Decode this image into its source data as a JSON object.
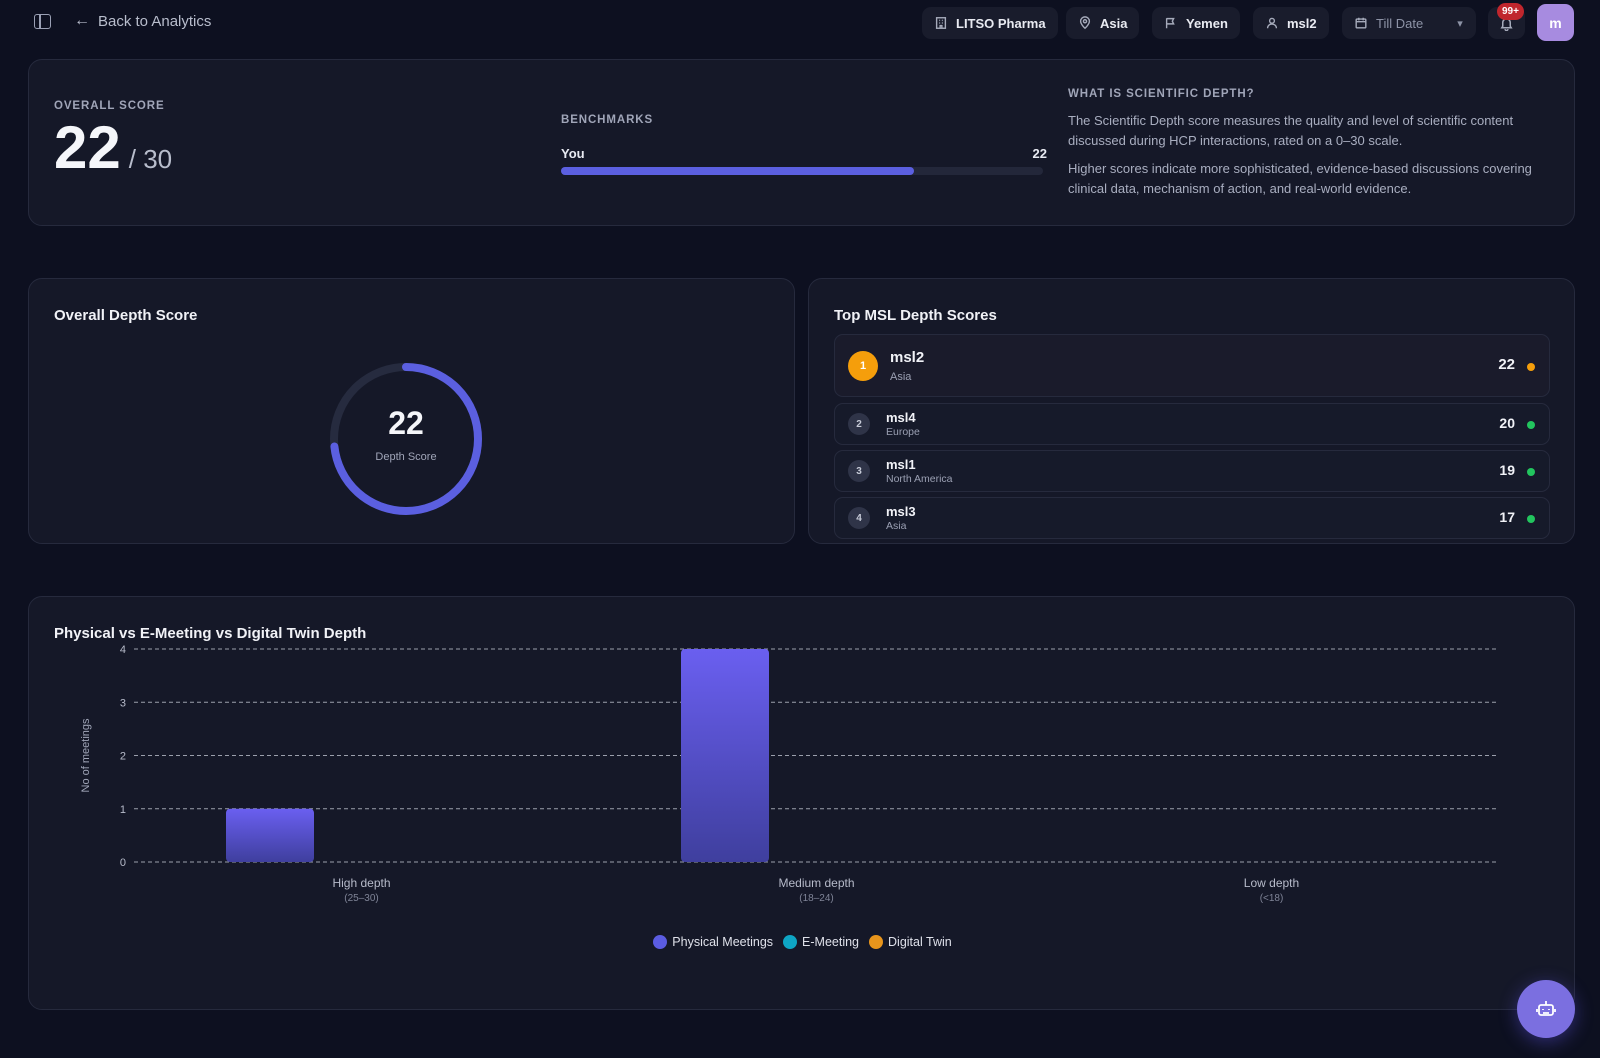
{
  "topbar": {
    "back_label": "Back to Analytics",
    "company": "LITSO Pharma",
    "region": "Asia",
    "country": "Yemen",
    "user": "msl2",
    "date_filter": "Till Date",
    "notifications_badge": "99+",
    "avatar_initial": "m"
  },
  "overview": {
    "overall_label": "OVERALL SCORE",
    "score": "22",
    "score_max": "/ 30",
    "benchmarks_label": "BENCHMARKS",
    "bench_you_label": "You",
    "bench_you_value": "22",
    "bench_fraction": 0.733,
    "what_title": "WHAT IS SCIENTIFIC DEPTH?",
    "what_p1": "The Scientific Depth score measures the quality and level of scientific content discussed during HCP interactions, rated on a 0–30 scale.",
    "what_p2": "Higher scores indicate more sophisticated, evidence-based discussions covering clinical data, mechanism of action, and real-world evidence."
  },
  "depth_card": {
    "title": "Overall Depth Score",
    "score": "22",
    "sub": "Depth Score",
    "gauge_fraction": 0.733
  },
  "top_msl": {
    "title": "Top MSL Depth Scores",
    "rows": [
      {
        "rank": "1",
        "name": "msl2",
        "region": "Asia",
        "score": "22",
        "dot_color": "#f59e0b"
      },
      {
        "rank": "2",
        "name": "msl4",
        "region": "Europe",
        "score": "20",
        "dot_color": "#22c55e"
      },
      {
        "rank": "3",
        "name": "msl1",
        "region": "North America",
        "score": "19",
        "dot_color": "#22c55e"
      },
      {
        "rank": "4",
        "name": "msl3",
        "region": "Asia",
        "score": "17",
        "dot_color": "#22c55e"
      }
    ]
  },
  "chart_data": {
    "type": "bar",
    "title": "Physical vs E-Meeting vs Digital Twin Depth",
    "ylabel": "No of meetings",
    "xlabel": "",
    "ylim": [
      0,
      4
    ],
    "yticks": [
      "0",
      "1",
      "2",
      "3",
      "4"
    ],
    "grid": true,
    "legend_position": "bottom",
    "categories": [
      "High depth",
      "Medium depth",
      "Low depth"
    ],
    "category_ranges": [
      "(25–30)",
      "(18–24)",
      "(<18)"
    ],
    "series": [
      {
        "name": "Physical Meetings",
        "color": "#5b5ce2",
        "values": [
          1,
          4,
          0
        ]
      },
      {
        "name": "E-Meeting",
        "color": "#0ea5c4",
        "values": [
          0,
          0,
          0
        ]
      },
      {
        "name": "Digital Twin",
        "color": "#e8951c",
        "values": [
          0,
          0,
          0
        ]
      }
    ]
  }
}
